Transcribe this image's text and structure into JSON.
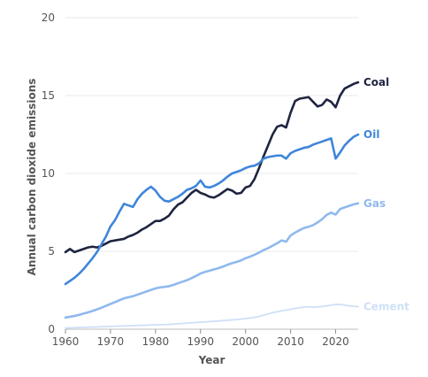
{
  "chart_data": {
    "type": "line",
    "title": "",
    "xlabel": "Year",
    "ylabel": "Annual carbon dioxide emissions",
    "xlim": [
      1960,
      2025
    ],
    "ylim": [
      0,
      20
    ],
    "x_ticks": [
      1960,
      1970,
      1980,
      1990,
      2000,
      2010,
      2020
    ],
    "y_ticks": [
      0,
      5,
      10,
      15,
      20
    ],
    "grid": true,
    "legend": "direct labels at right",
    "series": [
      {
        "name": "Coal",
        "color": "#1f2440",
        "x": [
          1960,
          1961,
          1962,
          1963,
          1964,
          1965,
          1966,
          1967,
          1968,
          1969,
          1970,
          1971,
          1972,
          1973,
          1974,
          1975,
          1976,
          1977,
          1978,
          1979,
          1980,
          1981,
          1982,
          1983,
          1984,
          1985,
          1986,
          1987,
          1988,
          1989,
          1990,
          1991,
          1992,
          1993,
          1994,
          1995,
          1996,
          1997,
          1998,
          1999,
          2000,
          2001,
          2002,
          2003,
          2004,
          2005,
          2006,
          2007,
          2008,
          2009,
          2010,
          2011,
          2012,
          2013,
          2014,
          2015,
          2016,
          2017,
          2018,
          2019,
          2020,
          2021,
          2022,
          2023,
          2024,
          2025
        ],
        "values": [
          4.95,
          5.15,
          4.95,
          5.05,
          5.15,
          5.25,
          5.3,
          5.25,
          5.35,
          5.5,
          5.65,
          5.7,
          5.75,
          5.8,
          5.95,
          6.05,
          6.2,
          6.4,
          6.55,
          6.75,
          6.95,
          6.95,
          7.1,
          7.3,
          7.7,
          8.0,
          8.15,
          8.45,
          8.75,
          8.95,
          8.75,
          8.65,
          8.5,
          8.45,
          8.6,
          8.8,
          9.0,
          8.9,
          8.7,
          8.75,
          9.1,
          9.2,
          9.65,
          10.35,
          11.1,
          11.8,
          12.5,
          13.0,
          13.1,
          12.95,
          13.9,
          14.65,
          14.8,
          14.85,
          14.9,
          14.6,
          14.3,
          14.4,
          14.75,
          14.6,
          14.25,
          15.0,
          15.45,
          15.6,
          15.75,
          15.85
        ]
      },
      {
        "name": "Oil",
        "color": "#3f86da",
        "x": [
          1960,
          1961,
          1962,
          1963,
          1964,
          1965,
          1966,
          1967,
          1968,
          1969,
          1970,
          1971,
          1972,
          1973,
          1974,
          1975,
          1976,
          1977,
          1978,
          1979,
          1980,
          1981,
          1982,
          1983,
          1984,
          1985,
          1986,
          1987,
          1988,
          1989,
          1990,
          1991,
          1992,
          1993,
          1994,
          1995,
          1996,
          1997,
          1998,
          1999,
          2000,
          2001,
          2002,
          2003,
          2004,
          2005,
          2006,
          2007,
          2008,
          2009,
          2010,
          2011,
          2012,
          2013,
          2014,
          2015,
          2016,
          2017,
          2018,
          2019,
          2020,
          2021,
          2022,
          2023,
          2024,
          2025
        ],
        "values": [
          2.9,
          3.1,
          3.3,
          3.55,
          3.85,
          4.2,
          4.55,
          4.95,
          5.45,
          5.95,
          6.6,
          7.0,
          7.55,
          8.05,
          7.95,
          7.85,
          8.35,
          8.7,
          8.95,
          9.15,
          8.9,
          8.5,
          8.25,
          8.2,
          8.35,
          8.5,
          8.7,
          8.95,
          9.05,
          9.2,
          9.55,
          9.15,
          9.1,
          9.2,
          9.35,
          9.55,
          9.8,
          10.0,
          10.1,
          10.2,
          10.35,
          10.45,
          10.5,
          10.65,
          10.95,
          11.05,
          11.1,
          11.15,
          11.15,
          10.95,
          11.3,
          11.45,
          11.55,
          11.65,
          11.7,
          11.85,
          11.95,
          12.05,
          12.15,
          12.25,
          10.95,
          11.35,
          11.8,
          12.1,
          12.35,
          12.5
        ]
      },
      {
        "name": "Gas",
        "color": "#8fb9ee",
        "x": [
          1960,
          1961,
          1962,
          1963,
          1964,
          1965,
          1966,
          1967,
          1968,
          1969,
          1970,
          1971,
          1972,
          1973,
          1974,
          1975,
          1976,
          1977,
          1978,
          1979,
          1980,
          1981,
          1982,
          1983,
          1984,
          1985,
          1986,
          1987,
          1988,
          1989,
          1990,
          1991,
          1992,
          1993,
          1994,
          1995,
          1996,
          1997,
          1998,
          1999,
          2000,
          2001,
          2002,
          2003,
          2004,
          2005,
          2006,
          2007,
          2008,
          2009,
          2010,
          2011,
          2012,
          2013,
          2014,
          2015,
          2016,
          2017,
          2018,
          2019,
          2020,
          2021,
          2022,
          2023,
          2024,
          2025
        ],
        "values": [
          0.75,
          0.8,
          0.85,
          0.92,
          1.0,
          1.08,
          1.17,
          1.27,
          1.38,
          1.5,
          1.62,
          1.74,
          1.86,
          1.98,
          2.05,
          2.12,
          2.22,
          2.32,
          2.42,
          2.52,
          2.62,
          2.68,
          2.72,
          2.76,
          2.85,
          2.95,
          3.05,
          3.15,
          3.28,
          3.42,
          3.58,
          3.68,
          3.76,
          3.84,
          3.92,
          4.02,
          4.14,
          4.24,
          4.32,
          4.42,
          4.56,
          4.66,
          4.78,
          4.92,
          5.08,
          5.2,
          5.36,
          5.52,
          5.7,
          5.62,
          6.02,
          6.2,
          6.36,
          6.5,
          6.58,
          6.68,
          6.86,
          7.06,
          7.34,
          7.48,
          7.36,
          7.72,
          7.82,
          7.92,
          8.02,
          8.08
        ]
      },
      {
        "name": "Cement",
        "color": "#cfe0f7",
        "x": [
          1960,
          1961,
          1962,
          1963,
          1964,
          1965,
          1966,
          1967,
          1968,
          1969,
          1970,
          1971,
          1972,
          1973,
          1974,
          1975,
          1976,
          1977,
          1978,
          1979,
          1980,
          1981,
          1982,
          1983,
          1984,
          1985,
          1986,
          1987,
          1988,
          1989,
          1990,
          1991,
          1992,
          1993,
          1994,
          1995,
          1996,
          1997,
          1998,
          1999,
          2000,
          2001,
          2002,
          2003,
          2004,
          2005,
          2006,
          2007,
          2008,
          2009,
          2010,
          2011,
          2012,
          2013,
          2014,
          2015,
          2016,
          2017,
          2018,
          2019,
          2020,
          2021,
          2022,
          2023,
          2024,
          2025
        ],
        "values": [
          0.08,
          0.09,
          0.1,
          0.11,
          0.12,
          0.13,
          0.14,
          0.15,
          0.16,
          0.17,
          0.18,
          0.19,
          0.2,
          0.21,
          0.22,
          0.23,
          0.24,
          0.25,
          0.26,
          0.27,
          0.28,
          0.29,
          0.3,
          0.31,
          0.33,
          0.35,
          0.37,
          0.39,
          0.41,
          0.43,
          0.45,
          0.47,
          0.49,
          0.51,
          0.53,
          0.55,
          0.58,
          0.6,
          0.62,
          0.65,
          0.68,
          0.72,
          0.76,
          0.82,
          0.9,
          0.98,
          1.06,
          1.12,
          1.18,
          1.23,
          1.28,
          1.34,
          1.38,
          1.42,
          1.44,
          1.42,
          1.43,
          1.46,
          1.5,
          1.55,
          1.58,
          1.6,
          1.55,
          1.5,
          1.47,
          1.45
        ]
      }
    ]
  }
}
